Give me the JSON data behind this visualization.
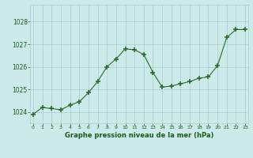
{
  "x": [
    0,
    1,
    2,
    3,
    4,
    5,
    6,
    7,
    8,
    9,
    10,
    11,
    12,
    13,
    14,
    15,
    16,
    17,
    18,
    19,
    20,
    21,
    22,
    23
  ],
  "y": [
    1023.9,
    1024.2,
    1024.15,
    1024.1,
    1024.3,
    1024.45,
    1024.85,
    1025.35,
    1026.0,
    1026.35,
    1026.8,
    1026.75,
    1026.55,
    1025.75,
    1025.1,
    1025.15,
    1025.25,
    1025.35,
    1025.5,
    1025.55,
    1026.05,
    1027.3,
    1027.65,
    1027.65
  ],
  "line_color": "#2d6b2d",
  "bg_color": "#cceaea",
  "grid_color": "#aacccc",
  "xlabel": "Graphe pression niveau de la mer (hPa)",
  "xlabel_color": "#1a5c1a",
  "tick_label_color": "#1a5c1a",
  "ylim": [
    1023.5,
    1028.75
  ],
  "yticks": [
    1024,
    1025,
    1026,
    1027,
    1028
  ],
  "xticks": [
    0,
    1,
    2,
    3,
    4,
    5,
    6,
    7,
    8,
    9,
    10,
    11,
    12,
    13,
    14,
    15,
    16,
    17,
    18,
    19,
    20,
    21,
    22,
    23
  ],
  "xlim": [
    -0.3,
    23.3
  ]
}
